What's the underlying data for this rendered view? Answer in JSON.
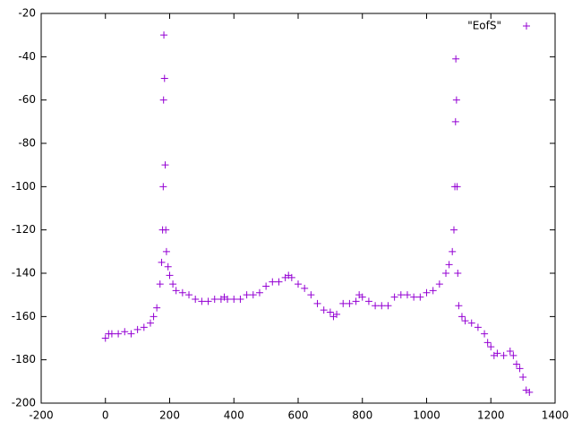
{
  "chart_data": {
    "type": "scatter",
    "xlim": [
      -200,
      1400
    ],
    "ylim": [
      -200,
      -20
    ],
    "xticks": [
      -200,
      0,
      200,
      400,
      600,
      800,
      1000,
      1200,
      1400
    ],
    "yticks": [
      -200,
      -180,
      -160,
      -140,
      -120,
      -100,
      -80,
      -60,
      -40,
      -20
    ],
    "legend": "top-right",
    "series": [
      {
        "name": "\"EofS\"",
        "color": "#9400d3",
        "x": [
          0,
          10,
          20,
          40,
          60,
          80,
          100,
          120,
          140,
          150,
          160,
          170,
          175,
          178,
          180,
          181,
          182,
          184,
          186,
          188,
          190,
          195,
          200,
          210,
          220,
          240,
          260,
          280,
          300,
          320,
          340,
          360,
          370,
          380,
          400,
          420,
          440,
          460,
          480,
          500,
          520,
          540,
          560,
          570,
          580,
          600,
          620,
          640,
          660,
          680,
          700,
          710,
          720,
          740,
          760,
          780,
          790,
          800,
          820,
          840,
          860,
          880,
          900,
          920,
          940,
          960,
          980,
          1000,
          1020,
          1040,
          1060,
          1070,
          1080,
          1085,
          1088,
          1090,
          1091,
          1093,
          1095,
          1097,
          1100,
          1110,
          1120,
          1140,
          1160,
          1180,
          1190,
          1200,
          1210,
          1220,
          1240,
          1260,
          1270,
          1280,
          1290,
          1300,
          1310,
          1320
        ],
        "values": [
          -170,
          -168,
          -168,
          -168,
          -167,
          -168,
          -166,
          -165,
          -163,
          -160,
          -156,
          -145,
          -135,
          -120,
          -100,
          -60,
          -30,
          -50,
          -90,
          -120,
          -130,
          -137,
          -141,
          -145,
          -148,
          -149,
          -150,
          -152,
          -153,
          -153,
          -152,
          -152,
          -151,
          -152,
          -152,
          -152,
          -150,
          -150,
          -149,
          -146,
          -144,
          -144,
          -142,
          -141,
          -142,
          -145,
          -147,
          -150,
          -154,
          -157,
          -158,
          -160,
          -159,
          -154,
          -154,
          -153,
          -150,
          -151,
          -153,
          -155,
          -155,
          -155,
          -151,
          -150,
          -150,
          -151,
          -151,
          -149,
          -148,
          -145,
          -140,
          -136,
          -130,
          -120,
          -100,
          -70,
          -41,
          -60,
          -100,
          -140,
          -155,
          -160,
          -162,
          -163,
          -165,
          -168,
          -172,
          -174,
          -178,
          -177,
          -178,
          -176,
          -178,
          -182,
          -184,
          -188,
          -194,
          -195
        ]
      }
    ]
  }
}
